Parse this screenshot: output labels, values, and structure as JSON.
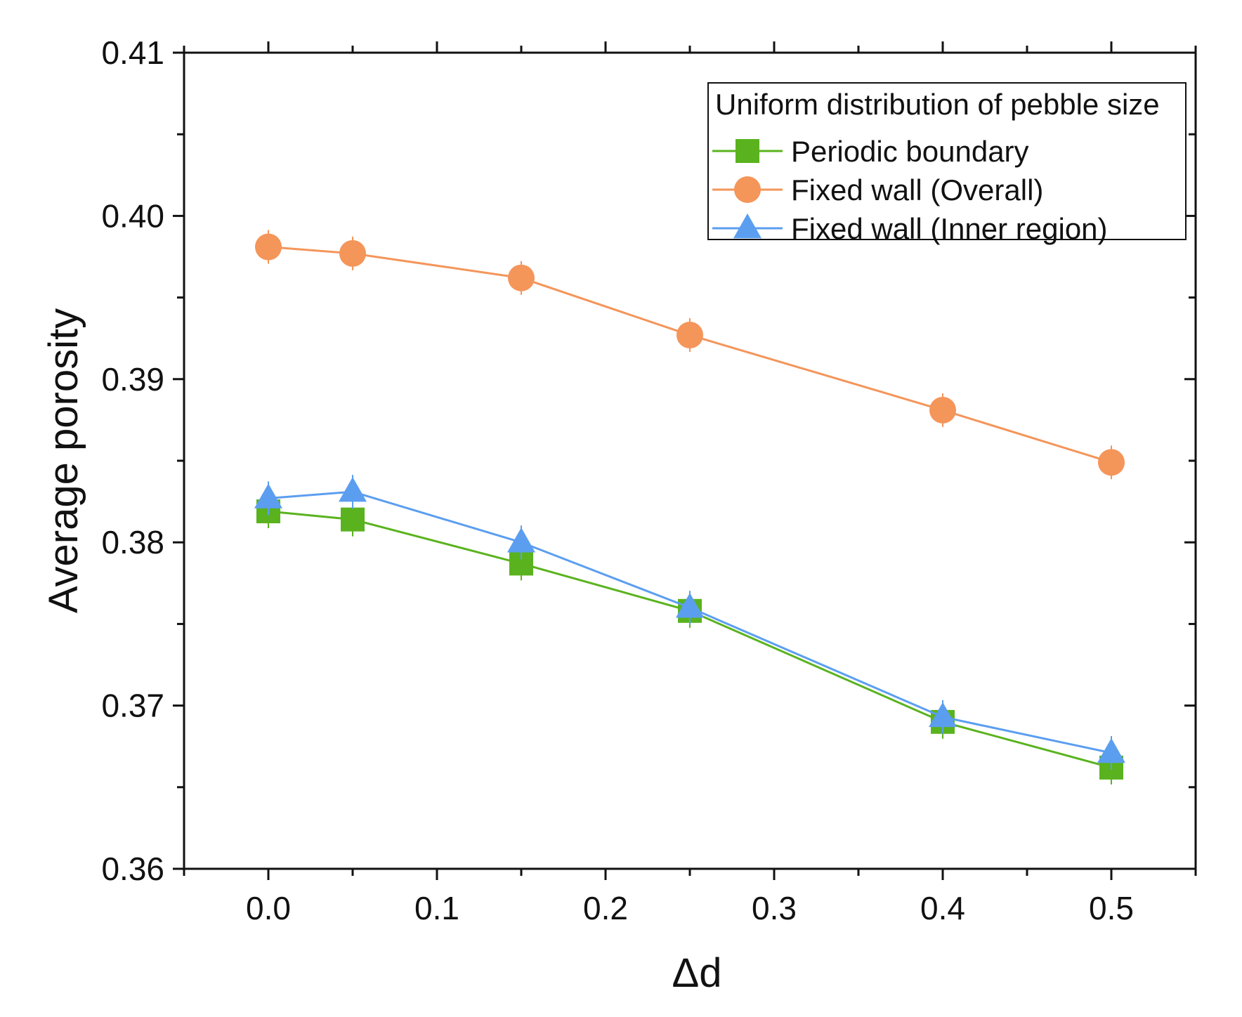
{
  "chart_data": {
    "type": "line",
    "title": "",
    "xlabel": "Δd",
    "ylabel": "Average porosity",
    "xlim": [
      -0.05,
      0.55
    ],
    "ylim": [
      0.36,
      0.41
    ],
    "x_ticks": [
      0.0,
      0.1,
      0.2,
      0.3,
      0.4,
      0.5
    ],
    "x_tick_labels": [
      "0.0",
      "0.1",
      "0.2",
      "0.3",
      "0.4",
      "0.5"
    ],
    "y_ticks": [
      0.36,
      0.37,
      0.38,
      0.39,
      0.4,
      0.41
    ],
    "y_tick_labels": [
      "0.36",
      "0.37",
      "0.38",
      "0.39",
      "0.40",
      "0.41"
    ],
    "grid": false,
    "legend": {
      "title": "Uniform distribution of pebble size",
      "placement": "top-right"
    },
    "x": [
      0.0,
      0.05,
      0.15,
      0.25,
      0.4,
      0.5
    ],
    "series": [
      {
        "name": "Periodic boundary",
        "marker": "square",
        "color": "#5ab31e",
        "values": [
          0.3819,
          0.3814,
          0.3787,
          0.3758,
          0.369,
          0.3662
        ]
      },
      {
        "name": "Fixed wall (Overall)",
        "marker": "circle",
        "color": "#f4955a",
        "values": [
          0.3981,
          0.3977,
          0.3962,
          0.3927,
          0.3881,
          0.3849
        ]
      },
      {
        "name": "Fixed wall (Inner region)",
        "marker": "triangle",
        "color": "#5b9ef0",
        "values": [
          0.3827,
          0.3831,
          0.38,
          0.376,
          0.3693,
          0.3671
        ]
      }
    ]
  }
}
